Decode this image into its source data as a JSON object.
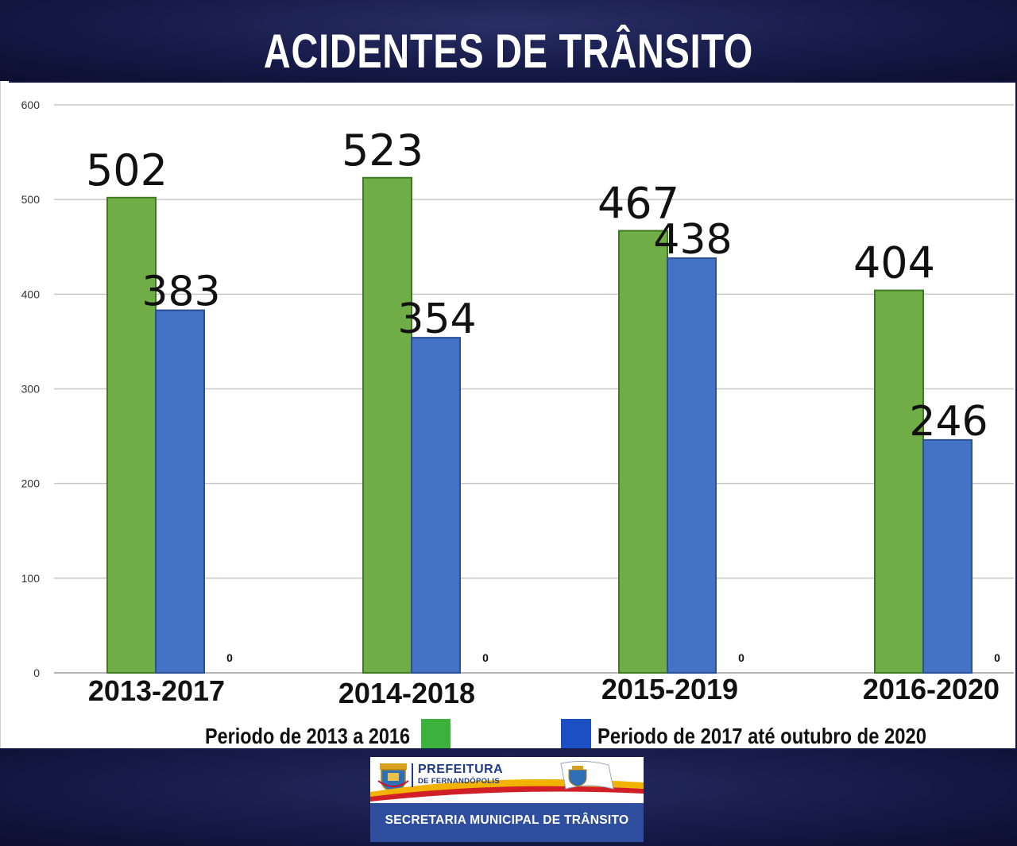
{
  "header": {
    "title": "ACIDENTES DE TRÂNSITO"
  },
  "chart_data": {
    "type": "bar",
    "title": "ACIDENTES DE TRÂNSITO",
    "categories": [
      "2013-2017",
      "2014-2018",
      "2015-2019",
      "2016-2020"
    ],
    "series": [
      {
        "name": "Periodo de 2013 a 2016",
        "color": "#70ad47",
        "values": [
          502,
          523,
          467,
          404
        ]
      },
      {
        "name": "Periodo de 2017 até outubro de 2020",
        "color": "#4472c4",
        "values": [
          383,
          354,
          438,
          246
        ]
      },
      {
        "name": "",
        "color": "#a5a5a5",
        "values": [
          0,
          0,
          0,
          0
        ]
      }
    ],
    "ylim": [
      0,
      600
    ],
    "yticks": [
      0,
      100,
      200,
      300,
      400,
      500,
      600
    ],
    "grid": true,
    "xlabel": "",
    "ylabel": "",
    "legend_position": "bottom"
  },
  "footer": {
    "logo_name": "PREFEITURA",
    "logo_city": "DE FERNANDÓPOLIS",
    "department": "SECRETARIA MUNICIPAL DE TRÂNSITO"
  }
}
